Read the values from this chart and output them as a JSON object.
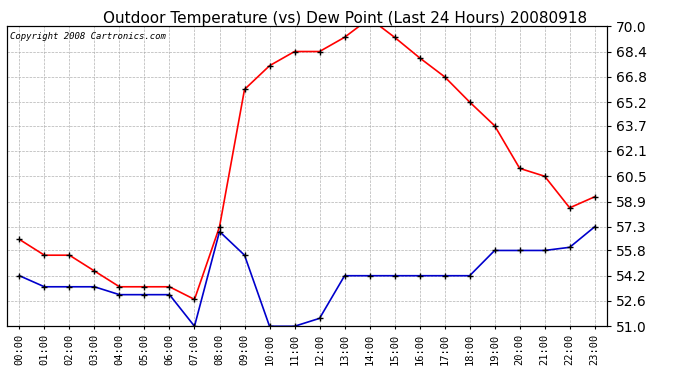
{
  "title": "Outdoor Temperature (vs) Dew Point (Last 24 Hours) 20080918",
  "copyright_text": "Copyright 2008 Cartronics.com",
  "x_labels": [
    "00:00",
    "01:00",
    "02:00",
    "03:00",
    "04:00",
    "05:00",
    "06:00",
    "07:00",
    "08:00",
    "09:00",
    "10:00",
    "11:00",
    "12:00",
    "13:00",
    "14:00",
    "15:00",
    "16:00",
    "17:00",
    "18:00",
    "19:00",
    "20:00",
    "21:00",
    "22:00",
    "23:00"
  ],
  "temp_data": [
    56.5,
    55.5,
    55.5,
    54.5,
    53.5,
    53.5,
    53.5,
    52.7,
    57.3,
    66.0,
    67.5,
    68.4,
    68.4,
    69.3,
    70.5,
    69.3,
    68.0,
    66.8,
    65.2,
    63.7,
    61.0,
    60.5,
    58.5,
    59.2
  ],
  "dew_data": [
    54.2,
    53.5,
    53.5,
    53.5,
    53.0,
    53.0,
    53.0,
    51.0,
    57.0,
    55.5,
    51.0,
    51.0,
    51.5,
    54.2,
    54.2,
    54.2,
    54.2,
    54.2,
    54.2,
    55.8,
    55.8,
    55.8,
    56.0,
    57.3
  ],
  "ylim": [
    51.0,
    70.0
  ],
  "yticks": [
    51.0,
    52.6,
    54.2,
    55.8,
    57.3,
    58.9,
    60.5,
    62.1,
    63.7,
    65.2,
    66.8,
    68.4,
    70.0
  ],
  "temp_color": "#FF0000",
  "dew_color": "#0000CC",
  "grid_color": "#AAAAAA",
  "bg_color": "#FFFFFF",
  "title_fontsize": 11,
  "copyright_fontsize": 6.5,
  "tick_fontsize": 7.5
}
